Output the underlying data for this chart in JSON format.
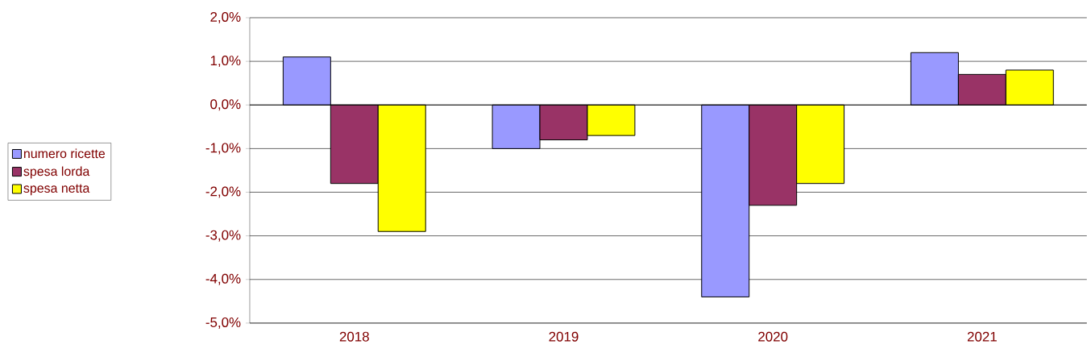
{
  "chart_data": {
    "type": "bar",
    "categories": [
      "2018",
      "2019",
      "2020",
      "2021"
    ],
    "series": [
      {
        "name": "numero ricette",
        "color": "#9999ff",
        "values": [
          1.1,
          -1.0,
          -4.4,
          1.2
        ]
      },
      {
        "name": "spesa lorda",
        "color": "#993366",
        "values": [
          -1.8,
          -0.8,
          -2.3,
          0.7
        ]
      },
      {
        "name": "spesa netta",
        "color": "#ffff00",
        "values": [
          -2.9,
          -0.7,
          -1.8,
          0.8
        ]
      }
    ],
    "ylim": [
      -5,
      2
    ],
    "yticks": [
      {
        "value": -5,
        "label": "-5,0%"
      },
      {
        "value": -4,
        "label": "-4,0%"
      },
      {
        "value": -3,
        "label": "-3,0%"
      },
      {
        "value": -2,
        "label": "-2,0%"
      },
      {
        "value": -1,
        "label": "-1,0%"
      },
      {
        "value": 0,
        "label": "0,0%"
      },
      {
        "value": 1,
        "label": "1,0%"
      },
      {
        "value": 2,
        "label": "2,0%"
      }
    ],
    "grid": "y",
    "legend": "left"
  }
}
